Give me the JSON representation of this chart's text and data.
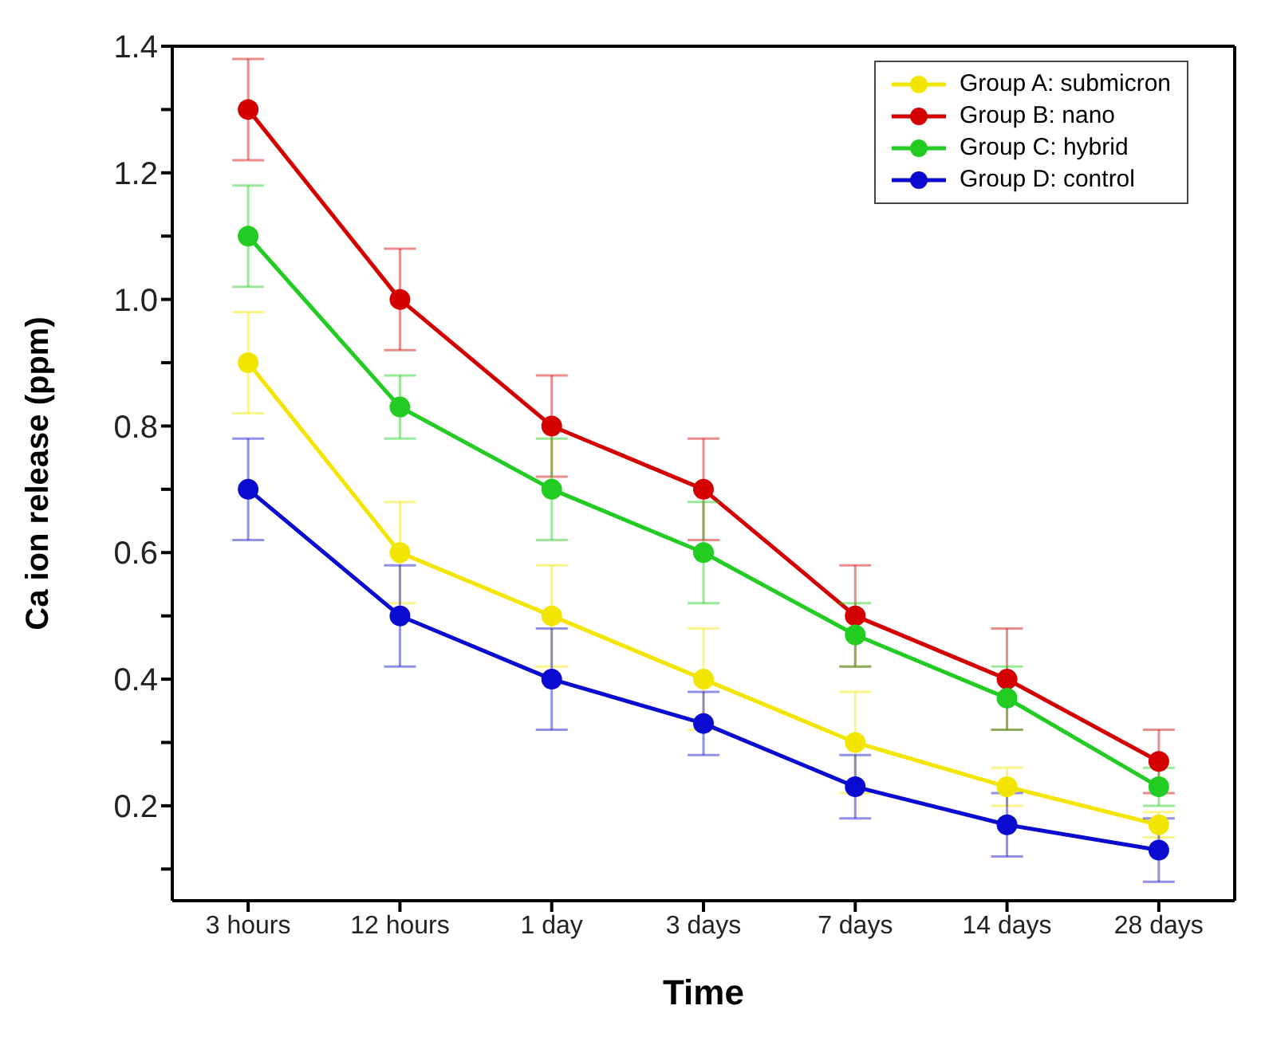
{
  "chart_data": {
    "type": "line",
    "xlabel": "Time",
    "ylabel": "Ca ion release (ppm)",
    "categories": [
      "3 hours",
      "12 hours",
      "1 day",
      "3 days",
      "7 days",
      "14 days",
      "28 days"
    ],
    "series": [
      {
        "name": "Group A: submicron",
        "color": "#f2e600",
        "values": [
          0.9,
          0.6,
          0.5,
          0.4,
          0.3,
          0.23,
          0.17
        ],
        "errors": [
          0.08,
          0.08,
          0.08,
          0.08,
          0.08,
          0.03,
          0.02
        ]
      },
      {
        "name": "Group B: nano",
        "color": "#d40000",
        "values": [
          1.3,
          1.0,
          0.8,
          0.7,
          0.5,
          0.4,
          0.27
        ],
        "errors": [
          0.08,
          0.08,
          0.08,
          0.08,
          0.08,
          0.08,
          0.05
        ]
      },
      {
        "name": "Group C: hybrid",
        "color": "#22cc22",
        "values": [
          1.1,
          0.83,
          0.7,
          0.6,
          0.47,
          0.37,
          0.23
        ],
        "errors": [
          0.08,
          0.05,
          0.08,
          0.08,
          0.05,
          0.05,
          0.03
        ]
      },
      {
        "name": "Group D: control",
        "color": "#0a0ad0",
        "values": [
          0.7,
          0.5,
          0.4,
          0.33,
          0.23,
          0.17,
          0.13
        ],
        "errors": [
          0.08,
          0.08,
          0.08,
          0.05,
          0.05,
          0.05,
          0.05
        ]
      }
    ],
    "ylim": [
      0.05,
      1.4
    ],
    "yticks": [
      {
        "value": 0.1,
        "label": null
      },
      0.2,
      {
        "value": 0.3,
        "label": null
      },
      0.4,
      {
        "value": 0.5,
        "label": null
      },
      0.6,
      {
        "value": 0.7,
        "label": null
      },
      0.8,
      {
        "value": 0.9,
        "label": null
      },
      {
        "value": 1.0,
        "label": "1.0"
      },
      {
        "value": 1.1,
        "label": null
      },
      1.2,
      {
        "value": 1.3,
        "label": null
      },
      1.4
    ],
    "grid": false,
    "legend": "top right",
    "marker": "circle",
    "line_style": "solid"
  }
}
